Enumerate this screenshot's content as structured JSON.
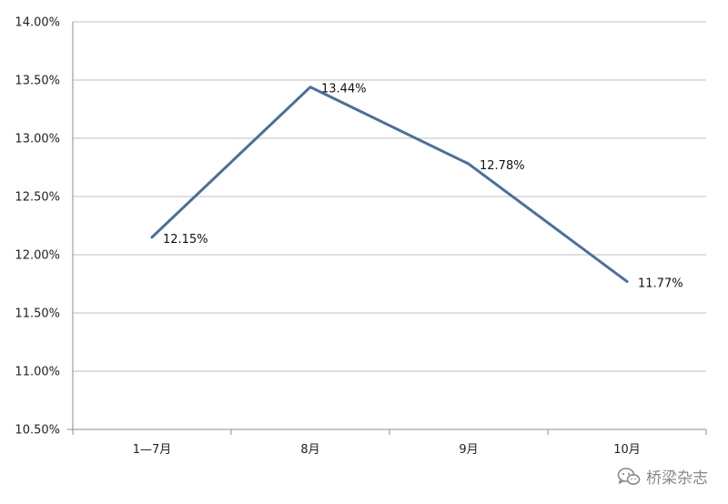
{
  "chart_data": {
    "type": "line",
    "categories": [
      "1—7月",
      "8月",
      "9月",
      "10月"
    ],
    "series": [
      {
        "values": [
          12.15,
          13.44,
          12.78,
          11.77
        ]
      }
    ],
    "data_labels": [
      "12.15%",
      "13.44%",
      "12.78%",
      "11.77%"
    ],
    "y_ticks": [
      "10.50%",
      "11.00%",
      "11.50%",
      "12.00%",
      "12.50%",
      "13.00%",
      "13.50%",
      "14.00%"
    ],
    "ylim": [
      10.5,
      14.0
    ],
    "grid": true,
    "legend": "none",
    "series_color": "#4a6f9c"
  },
  "watermark": {
    "text": "桥梁杂志",
    "icon": "wechat-icon"
  }
}
